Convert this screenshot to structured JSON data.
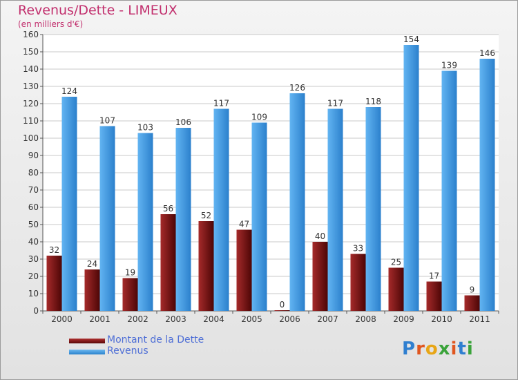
{
  "title": "Revenus/Dette - LIMEUX",
  "subtitle": "(en milliers d'€)",
  "colors": {
    "title": "#c2306e",
    "dette": "#7a1111",
    "revenus": "#3f9be3",
    "grid": "#c8c8c8",
    "legend_text": "#4f6fd6"
  },
  "legend": [
    {
      "label": "Montant de la Dette",
      "color": "#7a1111"
    },
    {
      "label": "Revenus",
      "color": "#3f9be3"
    }
  ],
  "logo": {
    "text": "Proxiti"
  },
  "chart_data": {
    "type": "bar",
    "categories": [
      "2000",
      "2001",
      "2002",
      "2003",
      "2004",
      "2005",
      "2006",
      "2007",
      "2008",
      "2009",
      "2010",
      "2011"
    ],
    "series": [
      {
        "name": "Montant de la Dette",
        "values": [
          32,
          24,
          19,
          56,
          52,
          47,
          0,
          40,
          33,
          25,
          17,
          9
        ]
      },
      {
        "name": "Revenus",
        "values": [
          124,
          107,
          103,
          106,
          117,
          109,
          126,
          117,
          118,
          154,
          139,
          146
        ]
      }
    ],
    "ylim": [
      0,
      160
    ],
    "yticks": [
      0,
      10,
      20,
      30,
      40,
      50,
      60,
      70,
      80,
      90,
      100,
      110,
      120,
      130,
      140,
      150,
      160
    ],
    "grid": true,
    "data_labels": true,
    "legend_position": "bottom-left"
  }
}
